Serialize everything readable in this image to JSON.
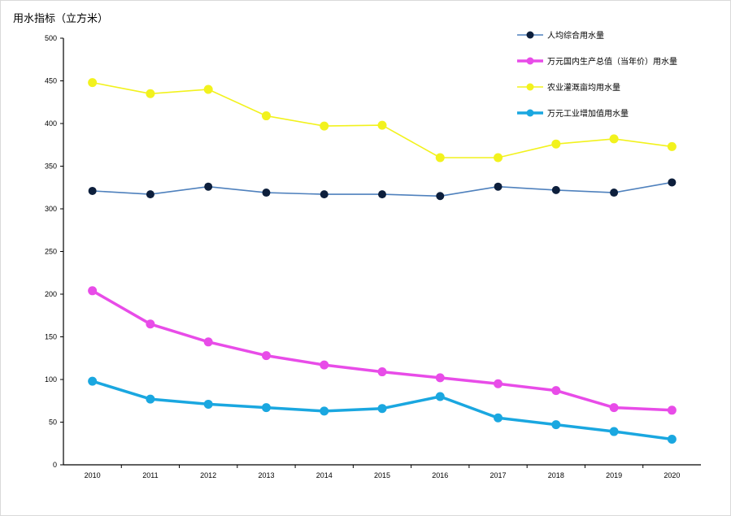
{
  "chart_data": {
    "type": "line",
    "ylabel": "用水指标（立方米）",
    "ylim": [
      0,
      500
    ],
    "y_ticks": [
      0,
      50,
      100,
      150,
      200,
      250,
      300,
      350,
      400,
      450,
      500
    ],
    "categories": [
      "2010",
      "2011",
      "2012",
      "2013",
      "2014",
      "2015",
      "2016",
      "2017",
      "2018",
      "2019",
      "2020"
    ],
    "legend_position": "top-right",
    "grid": false,
    "series": [
      {
        "name": "人均综合用水量",
        "color": "#4F81BD",
        "marker_color": "#0D1F3C",
        "values": [
          321,
          317,
          326,
          319,
          317,
          317,
          315,
          326,
          322,
          319,
          331
        ]
      },
      {
        "name": "万元国内生产总值（当年价）用水量",
        "color": "#E84CE8",
        "marker_color": "#E84CE8",
        "values": [
          204,
          165,
          144,
          128,
          117,
          109,
          102,
          95,
          87,
          67,
          64
        ]
      },
      {
        "name": "农业灌溉亩均用水量",
        "color": "#F2F21D",
        "marker_color": "#F2F21D",
        "values": [
          448,
          435,
          440,
          409,
          397,
          398,
          360,
          360,
          376,
          382,
          373
        ]
      },
      {
        "name": "万元工业增加值用水量",
        "color": "#1AA7E0",
        "marker_color": "#1AA7E0",
        "values": [
          98,
          77,
          71,
          67,
          63,
          66,
          80,
          55,
          47,
          39,
          30
        ]
      }
    ]
  }
}
